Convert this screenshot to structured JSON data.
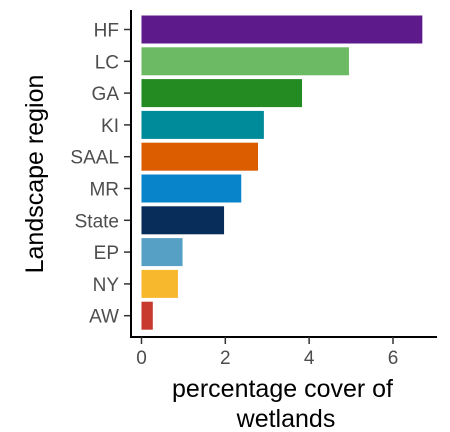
{
  "chart_data": {
    "type": "bar",
    "orientation": "horizontal",
    "categories": [
      "HF",
      "LC",
      "GA",
      "KI",
      "SAAL",
      "MR",
      "State",
      "EP",
      "NY",
      "AW"
    ],
    "values": [
      6.7,
      4.95,
      3.83,
      2.92,
      2.78,
      2.38,
      1.97,
      0.98,
      0.87,
      0.27
    ],
    "colors": [
      "#5c1a8b",
      "#6dba64",
      "#238b22",
      "#008b9a",
      "#dc5c00",
      "#0884cb",
      "#082d5a",
      "#55a0c4",
      "#f8b82e",
      "#c73a2d"
    ],
    "xlabel": [
      "percentage cover of",
      "wetlands"
    ],
    "ylabel": "Landscape region",
    "xlim": [
      -0.25,
      7.05
    ],
    "xticks": [
      0,
      2,
      4,
      6
    ],
    "grid": false,
    "legend": "none"
  }
}
